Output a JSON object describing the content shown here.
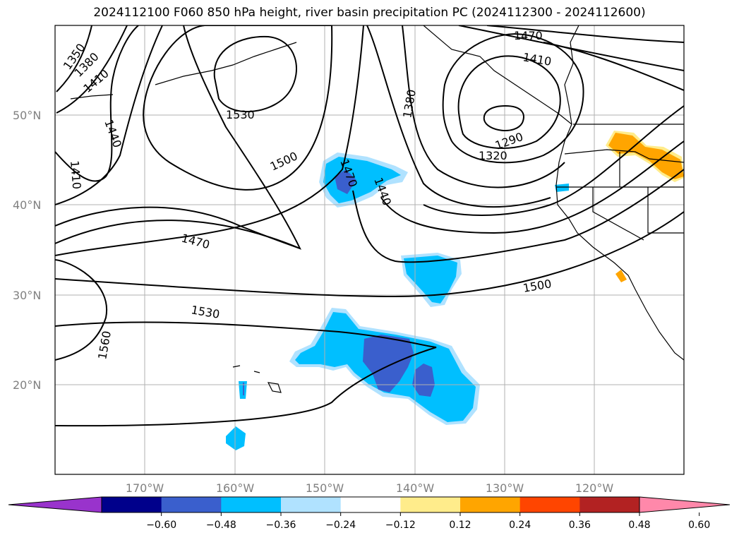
{
  "title": "2024112100 F060 850 hPa height, river basin precipitation PC (2024112300 - 2024112600)",
  "lat_labels": [
    "50°N",
    "40°N",
    "30°N",
    "20°N"
  ],
  "lon_labels": [
    "170°W",
    "160°W",
    "150°W",
    "140°W",
    "130°W",
    "120°W"
  ],
  "contour_labels": [
    "1350",
    "1380",
    "1410",
    "1440",
    "1410",
    "1530",
    "1500",
    "1470",
    "1440",
    "1470",
    "1410",
    "1380",
    "1290",
    "1320",
    "1470",
    "1530",
    "1500",
    "1560"
  ],
  "colorbar": {
    "ticks": [
      "−0.60",
      "−0.48",
      "−0.36",
      "−0.24",
      "−0.12",
      "0.12",
      "0.24",
      "0.36",
      "0.48",
      "0.60"
    ],
    "colors": [
      "#9933cc",
      "#00008b",
      "#3a5fcd",
      "#00bfff",
      "#b0e2ff",
      "#ffffff",
      "#ffec8b",
      "#ffa500",
      "#ff4500",
      "#b22222",
      "#ff88aa"
    ]
  }
}
